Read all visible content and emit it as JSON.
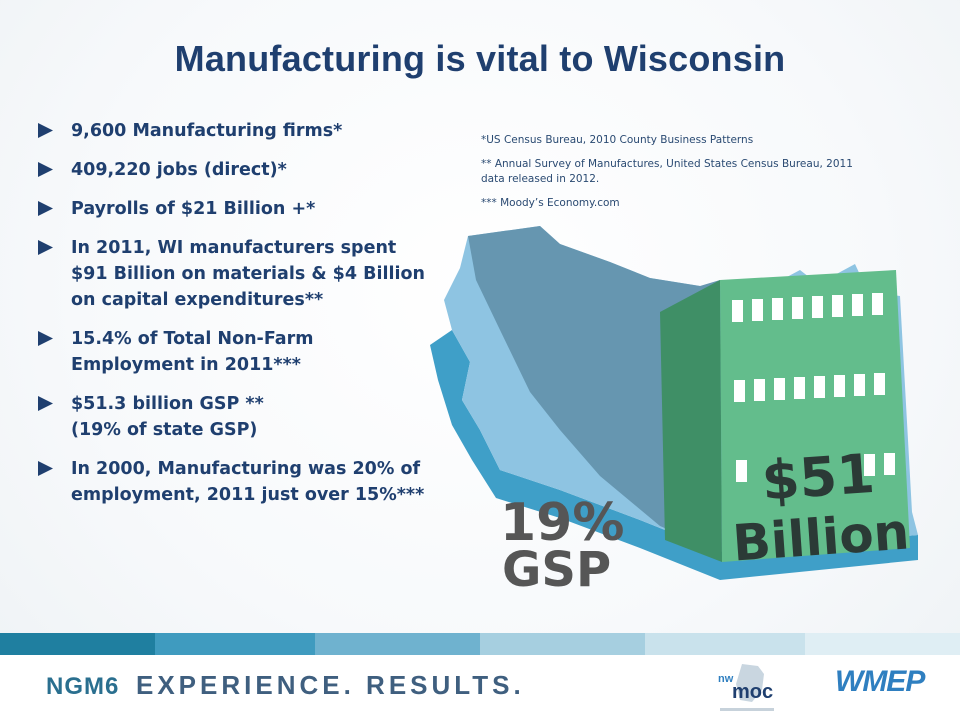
{
  "slide": {
    "title": "Manufacturing is vital to Wisconsin",
    "bullets": [
      "9,600 Manufacturing firms*",
      "409,220  jobs (direct)*",
      "Payrolls of  $21 Billion +*",
      "In 2011, WI manufacturers spent\n$91 Billion on materials & $4 Billion\non capital expenditures**",
      "15.4% of Total Non-Farm\nEmployment in 2011***",
      "$51.3 billion GSP **\n(19% of state GSP)",
      "In 2000, Manufacturing was 20% of\nemployment, 2011 just over 15%***"
    ],
    "footnotes": [
      "*US Census Bureau, 2010 County Business Patterns",
      "** Annual Survey of Manufactures, United States Census Bureau, 2011 data released in 2012.",
      "*** Moody’s Economy.com"
    ]
  },
  "graphic": {
    "gsp_percent": "19%",
    "gsp_label": "GSP",
    "value_amount": "$51",
    "value_unit": "Billion"
  },
  "footer": {
    "tagline": "EXPERIENCE. RESULTS.",
    "logo_ngm": "NGM6",
    "logo_moc_small": "nw",
    "logo_moc": "moc",
    "logo_wmep": "WMEP"
  },
  "colors": {
    "title": "#1f3f6f",
    "arrow": "#1f3f6f",
    "map_light": "#8fc3e0",
    "map_dark": "#5f8fa8",
    "building_green": "#5fb88a",
    "stripe_colors": [
      "#1f7fa0",
      "#3f9bbf",
      "#6fb2cf",
      "#a6cfe0",
      "#c9e2ec",
      "#dfeef4"
    ]
  }
}
